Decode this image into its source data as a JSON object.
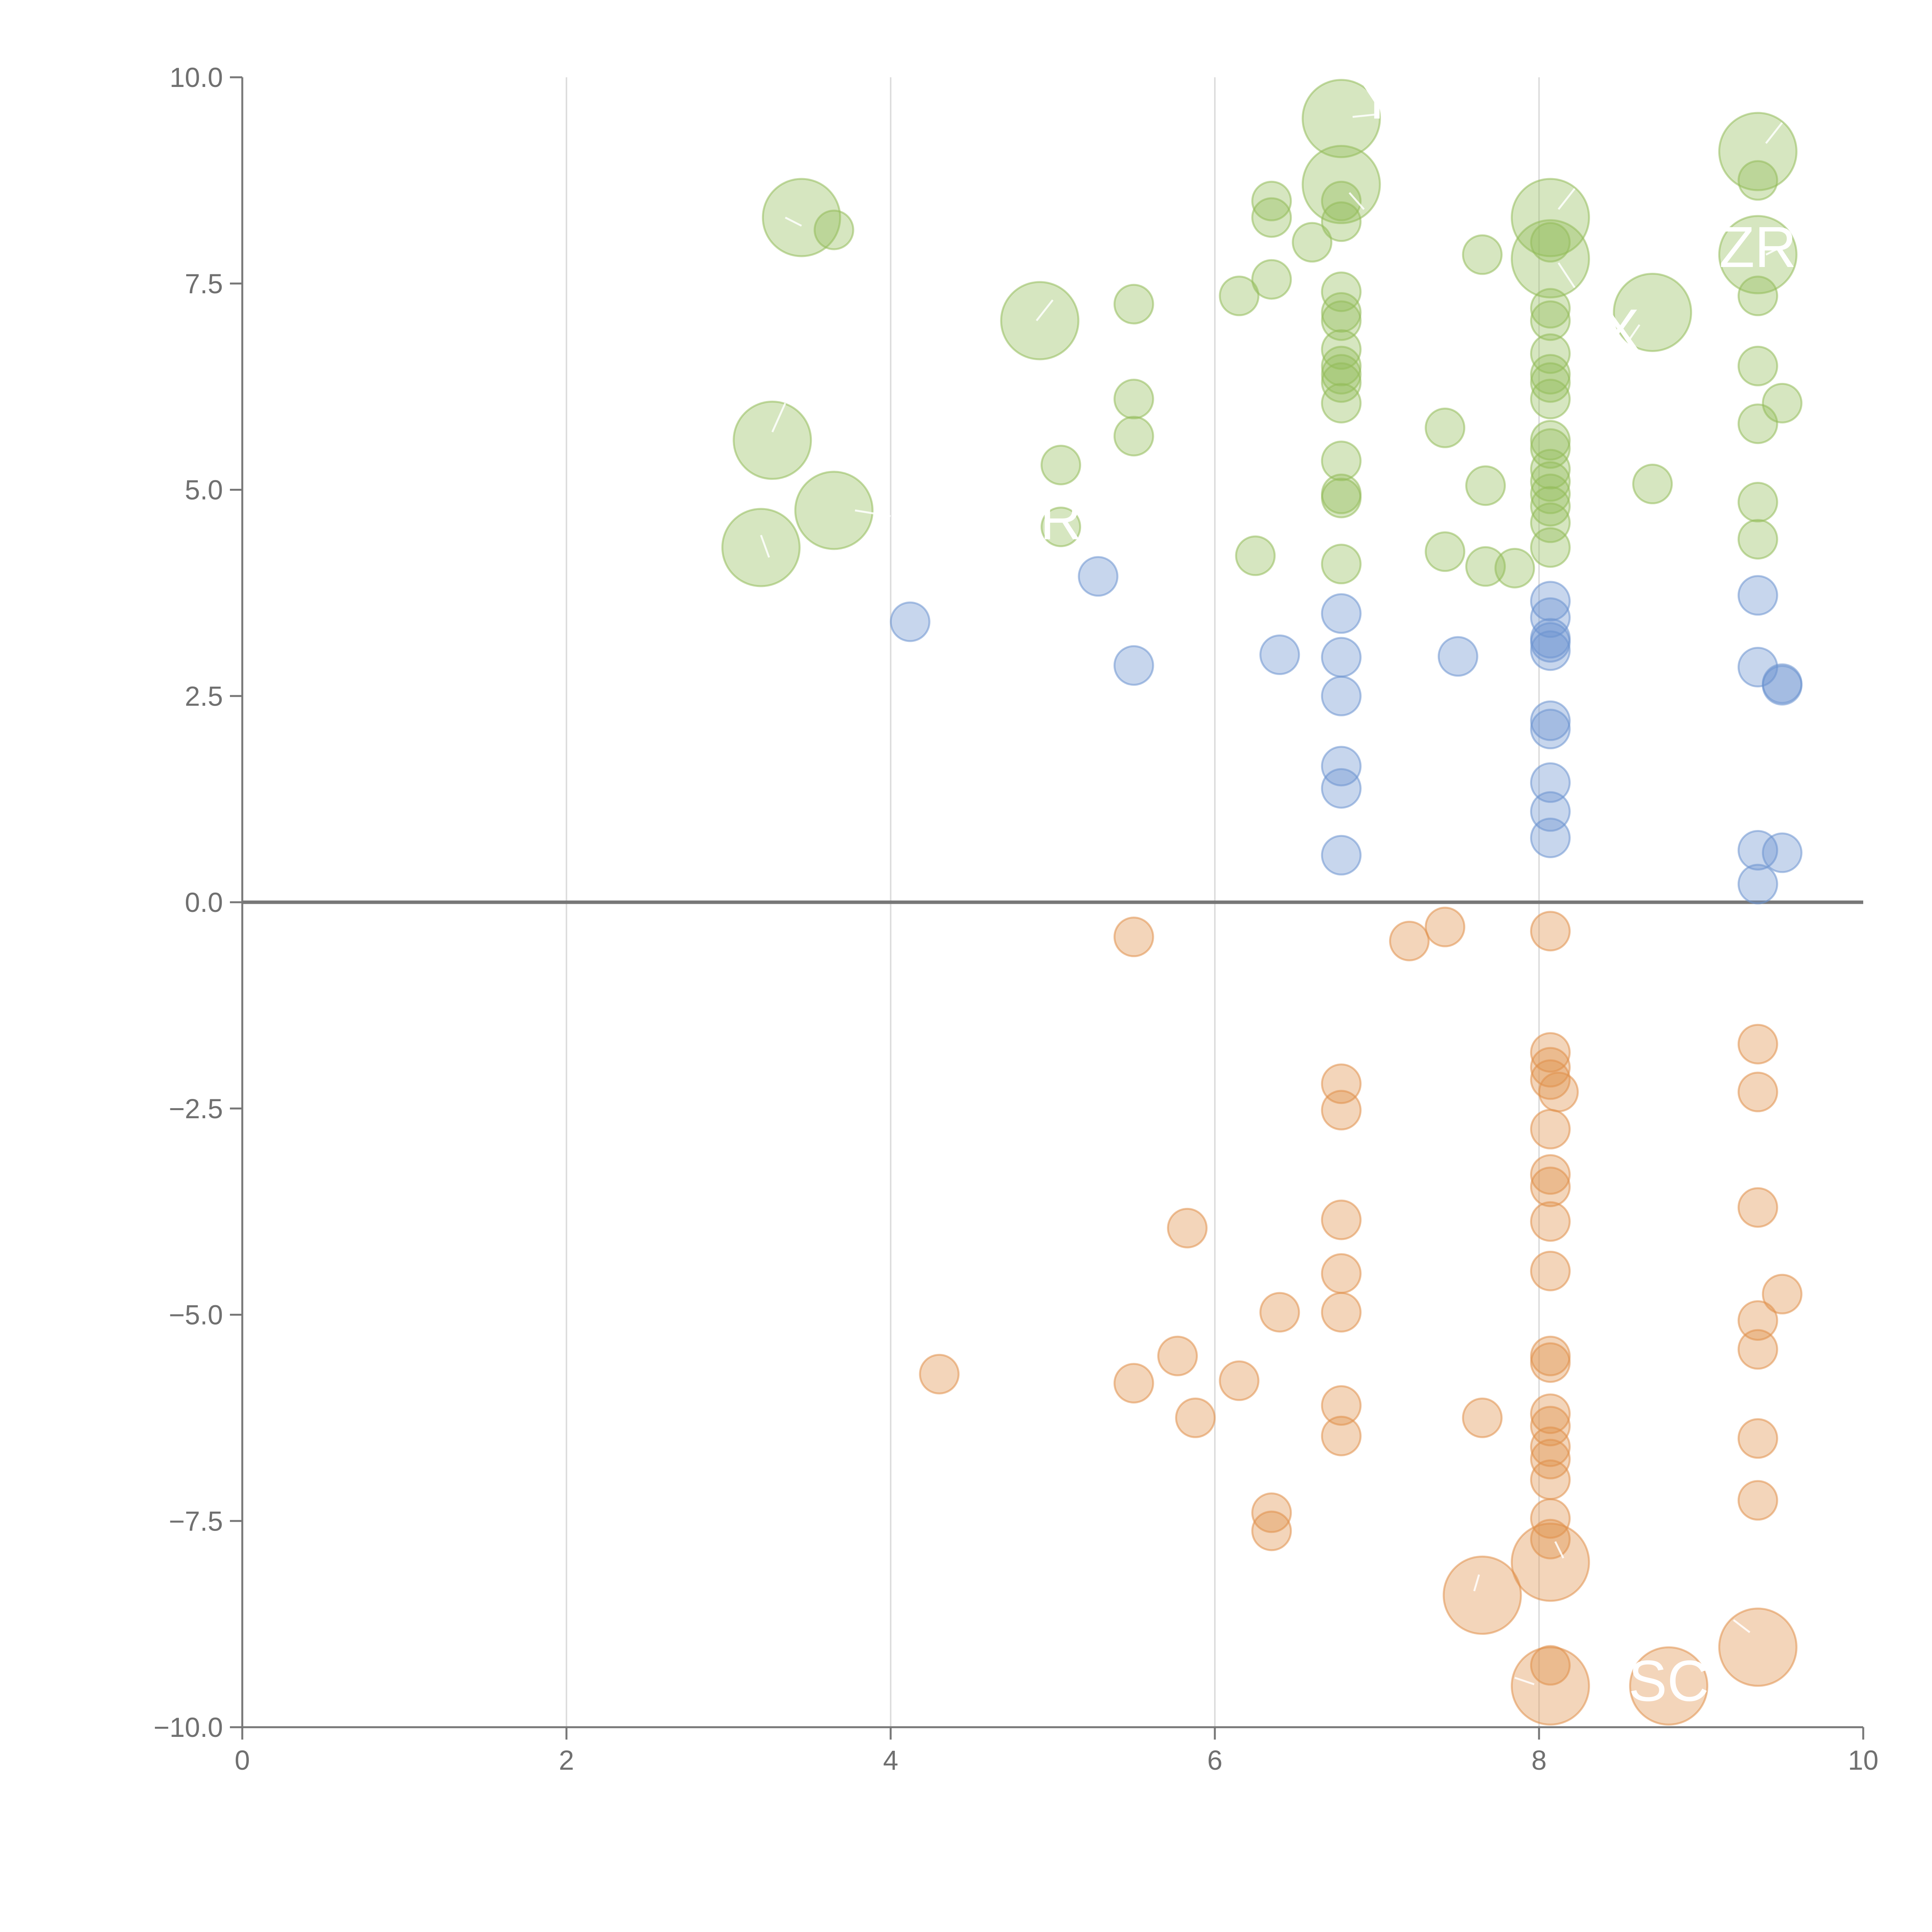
{
  "chart_data": {
    "type": "scatter",
    "title": "",
    "xlabel": "",
    "ylabel": "",
    "xlim": [
      0,
      10
    ],
    "ylim": [
      -10,
      10
    ],
    "x_ticks": [
      0,
      2,
      4,
      6,
      8,
      10
    ],
    "x_tick_labels": [
      "0",
      "2",
      "4",
      "6",
      "8",
      "10"
    ],
    "y_ticks": [
      -10,
      -7.5,
      -5,
      -2.5,
      0,
      2.5,
      5,
      7.5,
      10
    ],
    "y_tick_labels": [
      "−10.0",
      "−7.5",
      "−5.0",
      "−2.5",
      "0.0",
      "2.5",
      "5.0",
      "7.5",
      "10.0"
    ],
    "grid": "vertical",
    "reference_line_y": 0,
    "colors": {
      "green": "#93bc5a",
      "blue": "#6b93cf",
      "orange": "#e0904a",
      "axis": "#777777",
      "grid": "#dddddd",
      "tick_text": "#707070"
    },
    "series": [
      {
        "name": "green",
        "color": "#93bc5a",
        "points": [
          [
            3.45,
            8.3,
            1
          ],
          [
            3.65,
            8.15,
            0
          ],
          [
            4.92,
            7.05,
            1
          ],
          [
            3.27,
            5.6,
            1
          ],
          [
            3.65,
            4.75,
            1
          ],
          [
            3.2,
            4.3,
            1
          ],
          [
            5.5,
            7.25,
            0
          ],
          [
            5.5,
            6.1,
            0
          ],
          [
            5.5,
            5.65,
            0
          ],
          [
            5.05,
            5.3,
            0
          ],
          [
            5.05,
            4.55,
            0
          ],
          [
            6.35,
            8.5,
            0
          ],
          [
            6.35,
            8.3,
            0
          ],
          [
            6.6,
            8.0,
            0
          ],
          [
            6.15,
            7.35,
            0
          ],
          [
            6.35,
            7.55,
            0
          ],
          [
            6.25,
            4.2,
            0
          ],
          [
            6.78,
            9.5,
            1
          ],
          [
            6.78,
            8.7,
            1
          ],
          [
            6.78,
            8.5,
            0
          ],
          [
            6.78,
            8.25,
            0
          ],
          [
            6.78,
            7.4,
            0
          ],
          [
            6.78,
            7.15,
            0
          ],
          [
            6.78,
            7.05,
            0
          ],
          [
            6.78,
            6.7,
            0
          ],
          [
            6.78,
            6.5,
            0
          ],
          [
            6.78,
            6.4,
            0
          ],
          [
            6.78,
            6.3,
            0
          ],
          [
            6.78,
            6.05,
            0
          ],
          [
            6.78,
            5.35,
            0
          ],
          [
            6.78,
            4.95,
            0
          ],
          [
            6.78,
            4.9,
            0
          ],
          [
            6.78,
            4.1,
            0
          ],
          [
            7.42,
            5.75,
            0
          ],
          [
            7.42,
            4.25,
            0
          ],
          [
            7.65,
            7.85,
            0
          ],
          [
            7.67,
            5.05,
            0
          ],
          [
            7.67,
            4.07,
            0
          ],
          [
            7.85,
            4.05,
            0
          ],
          [
            8.07,
            8.3,
            1
          ],
          [
            8.07,
            7.8,
            1
          ],
          [
            8.07,
            8.0,
            0
          ],
          [
            8.07,
            7.2,
            0
          ],
          [
            8.07,
            7.05,
            0
          ],
          [
            8.07,
            6.65,
            0
          ],
          [
            8.07,
            6.4,
            0
          ],
          [
            8.07,
            6.3,
            0
          ],
          [
            8.07,
            6.1,
            0
          ],
          [
            8.07,
            5.6,
            0
          ],
          [
            8.07,
            5.5,
            0
          ],
          [
            8.07,
            5.25,
            0
          ],
          [
            8.07,
            5.1,
            0
          ],
          [
            8.07,
            4.95,
            0
          ],
          [
            8.07,
            4.8,
            0
          ],
          [
            8.07,
            4.6,
            0
          ],
          [
            8.07,
            4.3,
            0
          ],
          [
            8.7,
            7.15,
            1
          ],
          [
            8.7,
            5.07,
            0
          ],
          [
            9.35,
            9.1,
            1
          ],
          [
            9.35,
            7.85,
            1
          ],
          [
            9.35,
            8.75,
            0
          ],
          [
            9.35,
            7.35,
            0
          ],
          [
            9.35,
            6.5,
            0
          ],
          [
            9.35,
            5.8,
            0
          ],
          [
            9.5,
            6.05,
            0
          ],
          [
            9.35,
            4.85,
            0
          ],
          [
            9.35,
            4.4,
            0
          ]
        ]
      },
      {
        "name": "blue",
        "color": "#6b93cf",
        "points": [
          [
            4.12,
            3.4,
            0
          ],
          [
            5.28,
            3.95,
            0
          ],
          [
            5.5,
            2.87,
            0
          ],
          [
            6.4,
            3.0,
            0
          ],
          [
            6.78,
            3.5,
            0
          ],
          [
            6.78,
            2.97,
            0
          ],
          [
            6.78,
            2.5,
            0
          ],
          [
            6.78,
            1.65,
            0
          ],
          [
            6.78,
            1.38,
            0
          ],
          [
            6.78,
            0.57,
            0
          ],
          [
            7.5,
            2.98,
            0
          ],
          [
            8.07,
            3.65,
            0
          ],
          [
            8.07,
            3.45,
            0
          ],
          [
            8.07,
            3.2,
            0
          ],
          [
            8.07,
            3.15,
            0
          ],
          [
            8.07,
            3.05,
            0
          ],
          [
            8.07,
            2.2,
            0
          ],
          [
            8.07,
            2.1,
            0
          ],
          [
            8.07,
            1.45,
            0
          ],
          [
            8.07,
            1.1,
            0
          ],
          [
            8.07,
            0.78,
            0
          ],
          [
            9.35,
            3.72,
            0
          ],
          [
            9.35,
            2.85,
            0
          ],
          [
            9.5,
            2.65,
            0
          ],
          [
            9.5,
            2.63,
            0
          ],
          [
            9.35,
            0.63,
            0
          ],
          [
            9.5,
            0.6,
            0
          ],
          [
            9.35,
            0.22,
            0
          ]
        ]
      },
      {
        "name": "orange",
        "color": "#e0904a",
        "points": [
          [
            5.5,
            -0.42,
            0
          ],
          [
            7.2,
            -0.47,
            0
          ],
          [
            7.42,
            -0.3,
            0
          ],
          [
            8.07,
            -0.35,
            0
          ],
          [
            4.3,
            -5.72,
            0
          ],
          [
            5.5,
            -5.83,
            0
          ],
          [
            5.77,
            -5.5,
            0
          ],
          [
            5.83,
            -3.95,
            0
          ],
          [
            5.88,
            -6.25,
            0
          ],
          [
            6.15,
            -5.8,
            0
          ],
          [
            6.4,
            -4.97,
            0
          ],
          [
            6.35,
            -7.4,
            0
          ],
          [
            6.35,
            -7.62,
            0
          ],
          [
            6.78,
            -2.2,
            0
          ],
          [
            6.78,
            -2.52,
            0
          ],
          [
            6.78,
            -3.85,
            0
          ],
          [
            6.78,
            -4.5,
            0
          ],
          [
            6.78,
            -4.97,
            0
          ],
          [
            6.78,
            -6.1,
            0
          ],
          [
            6.78,
            -6.47,
            0
          ],
          [
            7.65,
            -6.25,
            0
          ],
          [
            7.65,
            -8.4,
            1
          ],
          [
            8.07,
            -1.82,
            0
          ],
          [
            8.07,
            -2.0,
            0
          ],
          [
            8.12,
            -2.3,
            0
          ],
          [
            8.07,
            -2.15,
            0
          ],
          [
            8.07,
            -2.75,
            0
          ],
          [
            8.07,
            -3.3,
            0
          ],
          [
            8.07,
            -3.45,
            0
          ],
          [
            8.07,
            -3.87,
            0
          ],
          [
            8.07,
            -4.47,
            0
          ],
          [
            8.07,
            -5.5,
            0
          ],
          [
            8.07,
            -5.58,
            0
          ],
          [
            8.07,
            -6.2,
            0
          ],
          [
            8.07,
            -6.35,
            0
          ],
          [
            8.07,
            -6.6,
            0
          ],
          [
            8.07,
            -6.75,
            0
          ],
          [
            8.07,
            -7.0,
            0
          ],
          [
            8.07,
            -7.47,
            0
          ],
          [
            8.07,
            -7.72,
            0
          ],
          [
            8.07,
            -8.0,
            1
          ],
          [
            8.07,
            -9.25,
            0
          ],
          [
            8.07,
            -9.5,
            1
          ],
          [
            8.8,
            -9.5,
            1
          ],
          [
            9.35,
            -1.72,
            0
          ],
          [
            9.35,
            -2.3,
            0
          ],
          [
            9.35,
            -3.7,
            0
          ],
          [
            9.5,
            -4.75,
            0
          ],
          [
            9.35,
            -5.07,
            0
          ],
          [
            9.35,
            -5.42,
            0
          ],
          [
            9.35,
            -6.5,
            0
          ],
          [
            9.35,
            -7.25,
            0
          ],
          [
            9.35,
            -9.03,
            1
          ]
        ]
      }
    ],
    "annotations": [
      {
        "text": "SC",
        "x": 8.8,
        "y": -9.68
      },
      {
        "text": "ZR",
        "x": 9.35,
        "y": 7.7
      },
      {
        "text": "R",
        "x": 5.05,
        "y": 4.4
      },
      {
        "text": "Y",
        "x": 7.0,
        "y": 9.5
      },
      {
        "text": "X",
        "x": 8.5,
        "y": 6.7
      }
    ],
    "leaders": [
      {
        "x1": 3.35,
        "y1": 8.3,
        "x2": 3.45,
        "y2": 8.2
      },
      {
        "x1": 5.0,
        "y1": 7.3,
        "x2": 4.9,
        "y2": 7.05
      },
      {
        "x1": 3.27,
        "y1": 5.7,
        "x2": 3.35,
        "y2": 6.05
      },
      {
        "x1": 3.78,
        "y1": 4.75,
        "x2": 4.0,
        "y2": 4.68
      },
      {
        "x1": 3.25,
        "y1": 4.18,
        "x2": 3.2,
        "y2": 4.45
      },
      {
        "x1": 6.85,
        "y1": 9.52,
        "x2": 7.0,
        "y2": 9.55
      },
      {
        "x1": 6.83,
        "y1": 8.6,
        "x2": 6.92,
        "y2": 8.4
      },
      {
        "x1": 8.12,
        "y1": 8.4,
        "x2": 8.22,
        "y2": 8.65
      },
      {
        "x1": 8.12,
        "y1": 7.75,
        "x2": 8.22,
        "y2": 7.45
      },
      {
        "x1": 8.62,
        "y1": 7.0,
        "x2": 8.55,
        "y2": 6.8
      },
      {
        "x1": 9.4,
        "y1": 9.2,
        "x2": 9.5,
        "y2": 9.45
      },
      {
        "x1": 9.4,
        "y1": 7.85,
        "x2": 9.5,
        "y2": 7.95
      },
      {
        "x1": 7.63,
        "y1": -8.15,
        "x2": 7.6,
        "y2": -8.35
      },
      {
        "x1": 8.1,
        "y1": -7.75,
        "x2": 8.15,
        "y2": -7.95
      },
      {
        "x1": 9.3,
        "y1": -8.85,
        "x2": 9.2,
        "y2": -8.7
      },
      {
        "x1": 7.97,
        "y1": -9.48,
        "x2": 7.85,
        "y2": -9.4
      }
    ]
  }
}
